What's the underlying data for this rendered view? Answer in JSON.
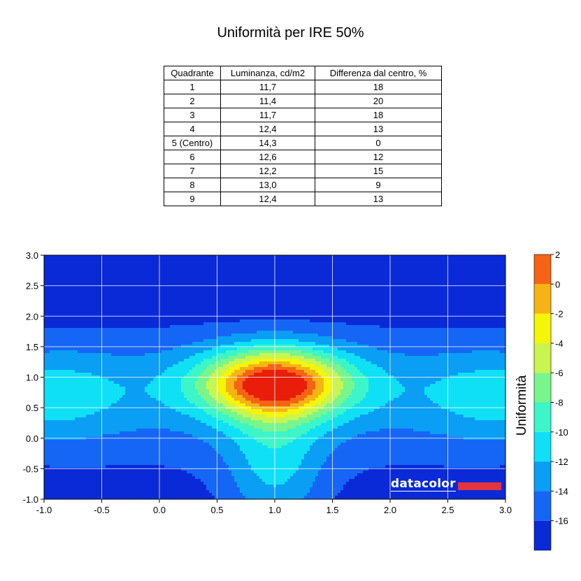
{
  "page_title": "Uniformità per IRE 50%",
  "table": {
    "headers": [
      "Quadrante",
      "Luminanza, cd/m2",
      "Differenza dal centro, %"
    ],
    "rows": [
      [
        "1",
        "11,7",
        "18"
      ],
      [
        "2",
        "11,4",
        "20"
      ],
      [
        "3",
        "11,7",
        "18"
      ],
      [
        "4",
        "12,4",
        "13"
      ],
      [
        "5 (Centro)",
        "14,3",
        "0"
      ],
      [
        "6",
        "12,6",
        "12"
      ],
      [
        "7",
        "12,2",
        "15"
      ],
      [
        "8",
        "13,0",
        "9"
      ],
      [
        "9",
        "12,4",
        "13"
      ]
    ]
  },
  "logo_text": "datacolor",
  "chart_data": {
    "type": "heatmap",
    "subtype": "filled-contour",
    "xlim": [
      -1.0,
      3.0
    ],
    "ylim": [
      -1.0,
      3.0
    ],
    "x_ticks": [
      "-1.0",
      "-0.5",
      "0.0",
      "0.5",
      "1.0",
      "1.5",
      "2.0",
      "2.5",
      "3.0"
    ],
    "y_ticks": [
      "3.0",
      "2.5",
      "2.0",
      "1.5",
      "1.0",
      "0.5",
      "0.0",
      "-0.5",
      "-1.0"
    ],
    "grid": true,
    "peak": {
      "x": 1.0,
      "y": 0.9,
      "value": 1
    },
    "colorbar": {
      "label": "Uniformità",
      "ticks": [
        "2",
        "0",
        "-2",
        "-4",
        "-6",
        "-8",
        "-10",
        "-12",
        "-14",
        "-16"
      ],
      "levels": [
        -18,
        -16,
        -14,
        -12,
        -10,
        -8,
        -6,
        -4,
        -2,
        0,
        2
      ],
      "colors": [
        "#0a2ad8",
        "#1666f5",
        "#0a9ef5",
        "#0fe0f5",
        "#3cf5c8",
        "#78f58c",
        "#c8f550",
        "#f5f50a",
        "#f5b414",
        "#f56414",
        "#e81e0a"
      ]
    }
  }
}
